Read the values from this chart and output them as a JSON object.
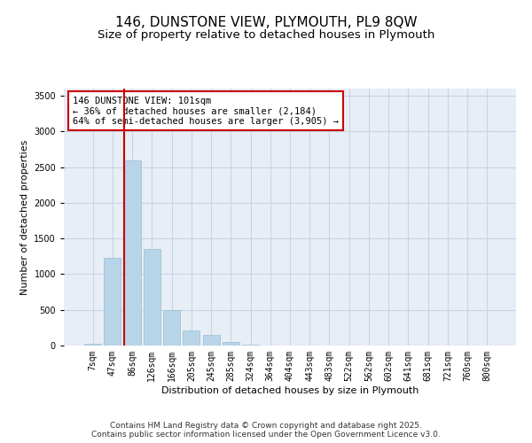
{
  "title_line1": "146, DUNSTONE VIEW, PLYMOUTH, PL9 8QW",
  "title_line2": "Size of property relative to detached houses in Plymouth",
  "xlabel": "Distribution of detached houses by size in Plymouth",
  "ylabel": "Number of detached properties",
  "categories": [
    "7sqm",
    "47sqm",
    "86sqm",
    "126sqm",
    "166sqm",
    "205sqm",
    "245sqm",
    "285sqm",
    "324sqm",
    "364sqm",
    "404sqm",
    "443sqm",
    "483sqm",
    "522sqm",
    "562sqm",
    "602sqm",
    "641sqm",
    "681sqm",
    "721sqm",
    "760sqm",
    "800sqm"
  ],
  "values": [
    30,
    1230,
    2600,
    1350,
    500,
    205,
    150,
    55,
    10,
    0,
    0,
    0,
    0,
    0,
    0,
    0,
    0,
    0,
    0,
    0,
    0
  ],
  "bar_color": "#b8d4e8",
  "bar_edge_color": "#9bbdd4",
  "vline_color": "#cc0000",
  "annotation_text": "146 DUNSTONE VIEW: 101sqm\n← 36% of detached houses are smaller (2,184)\n64% of semi-detached houses are larger (3,905) →",
  "annotation_box_color": "#cc0000",
  "ylim": [
    0,
    3600
  ],
  "yticks": [
    0,
    500,
    1000,
    1500,
    2000,
    2500,
    3000,
    3500
  ],
  "grid_color": "#c8d4e4",
  "bg_color": "#e8eef6",
  "footnote": "Contains HM Land Registry data © Crown copyright and database right 2025.\nContains public sector information licensed under the Open Government Licence v3.0.",
  "title_fontsize": 11,
  "subtitle_fontsize": 9.5,
  "axis_label_fontsize": 8,
  "tick_fontsize": 7,
  "annotation_fontsize": 7.5,
  "footnote_fontsize": 6.5
}
